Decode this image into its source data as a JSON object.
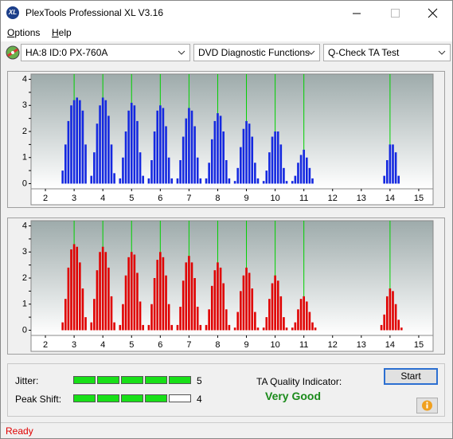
{
  "window": {
    "icon": "XL",
    "title": "PlexTools Professional XL V3.16"
  },
  "menu": [
    "Options",
    "Help"
  ],
  "toolbar": {
    "drive": "HA:8 ID:0  PX-760A",
    "function": "DVD Diagnostic Functions",
    "test": "Q-Check TA Test"
  },
  "chart_data": [
    {
      "type": "bar",
      "color": "#1428e0",
      "marker_color": "#00d000",
      "xlim": [
        1.5,
        15.5
      ],
      "ylim": [
        -0.2,
        4.2
      ],
      "xticks": [
        2,
        3,
        4,
        5,
        6,
        7,
        8,
        9,
        10,
        11,
        12,
        13,
        14,
        15
      ],
      "yticks": [
        0,
        0.5,
        1,
        1.5,
        2,
        2.5,
        3,
        3.5,
        4
      ],
      "markers": [
        3,
        4,
        5,
        6,
        7,
        8,
        9,
        10,
        11,
        14
      ],
      "x": [
        2.6,
        2.7,
        2.8,
        2.9,
        3,
        3.1,
        3.2,
        3.3,
        3.4,
        3.6,
        3.7,
        3.8,
        3.9,
        4,
        4.1,
        4.2,
        4.3,
        4.4,
        4.6,
        4.7,
        4.8,
        4.9,
        5,
        5.1,
        5.2,
        5.3,
        5.4,
        5.6,
        5.7,
        5.8,
        5.9,
        6,
        6.1,
        6.2,
        6.3,
        6.4,
        6.6,
        6.7,
        6.8,
        6.9,
        7,
        7.1,
        7.2,
        7.3,
        7.4,
        7.6,
        7.7,
        7.8,
        7.9,
        8,
        8.1,
        8.2,
        8.3,
        8.4,
        8.6,
        8.7,
        8.8,
        8.9,
        9,
        9.1,
        9.2,
        9.3,
        9.4,
        9.6,
        9.7,
        9.8,
        9.9,
        10,
        10.1,
        10.2,
        10.3,
        10.4,
        10.6,
        10.7,
        10.8,
        10.9,
        11,
        11.1,
        11.2,
        11.3,
        11.4,
        13.6,
        13.7,
        13.8,
        13.9,
        14,
        14.1,
        14.2,
        14.3,
        14.4
      ],
      "values": [
        0.5,
        1.5,
        2.4,
        3.0,
        3.2,
        3.3,
        3.2,
        2.8,
        1.5,
        0.3,
        1.2,
        2.3,
        3.0,
        3.3,
        3.2,
        2.6,
        1.5,
        0.4,
        0.2,
        1.0,
        2.0,
        2.8,
        3.1,
        3.0,
        2.4,
        1.2,
        0.3,
        0.2,
        0.9,
        2.0,
        2.8,
        3.0,
        2.9,
        2.2,
        1.0,
        0.2,
        0.2,
        0.9,
        1.8,
        2.5,
        2.9,
        2.8,
        2.2,
        1.0,
        0.2,
        0.2,
        0.8,
        1.7,
        2.4,
        2.7,
        2.6,
        2.0,
        0.9,
        0.2,
        0.1,
        0.6,
        1.4,
        2.1,
        2.4,
        2.3,
        1.8,
        0.8,
        0.2,
        0.1,
        0.5,
        1.2,
        1.8,
        2.0,
        2.0,
        1.5,
        0.6,
        0.1,
        0.1,
        0.3,
        0.8,
        1.1,
        1.3,
        1.0,
        0.6,
        0.2,
        0,
        0,
        0,
        0.3,
        0.9,
        1.5,
        1.5,
        1.2,
        0.3,
        0
      ]
    },
    {
      "type": "bar",
      "color": "#e00000",
      "marker_color": "#00d000",
      "xlim": [
        1.5,
        15.5
      ],
      "ylim": [
        -0.2,
        4.2
      ],
      "xticks": [
        2,
        3,
        4,
        5,
        6,
        7,
        8,
        9,
        10,
        11,
        12,
        13,
        14,
        15
      ],
      "yticks": [
        0,
        0.5,
        1,
        1.5,
        2,
        2.5,
        3,
        3.5,
        4
      ],
      "markers": [
        3,
        4,
        5,
        6,
        7,
        8,
        9,
        10,
        11,
        14
      ],
      "x": [
        2.6,
        2.7,
        2.8,
        2.9,
        3,
        3.1,
        3.2,
        3.3,
        3.4,
        3.6,
        3.7,
        3.8,
        3.9,
        4,
        4.1,
        4.2,
        4.3,
        4.4,
        4.6,
        4.7,
        4.8,
        4.9,
        5,
        5.1,
        5.2,
        5.3,
        5.4,
        5.6,
        5.7,
        5.8,
        5.9,
        6,
        6.1,
        6.2,
        6.3,
        6.4,
        6.6,
        6.7,
        6.8,
        6.9,
        7,
        7.1,
        7.2,
        7.3,
        7.4,
        7.6,
        7.7,
        7.8,
        7.9,
        8,
        8.1,
        8.2,
        8.3,
        8.4,
        8.6,
        8.7,
        8.8,
        8.9,
        9,
        9.1,
        9.2,
        9.3,
        9.4,
        9.6,
        9.7,
        9.8,
        9.9,
        10,
        10.1,
        10.2,
        10.3,
        10.4,
        10.6,
        10.7,
        10.8,
        10.9,
        11,
        11.1,
        11.2,
        11.3,
        11.4,
        13.6,
        13.7,
        13.8,
        13.9,
        14,
        14.1,
        14.2,
        14.3,
        14.4
      ],
      "values": [
        0.3,
        1.2,
        2.4,
        3.1,
        3.3,
        3.2,
        2.6,
        1.6,
        0.5,
        0.3,
        1.2,
        2.3,
        3.0,
        3.2,
        3.0,
        2.4,
        1.3,
        0.3,
        0.2,
        1.0,
        2.1,
        2.8,
        3.0,
        2.9,
        2.2,
        1.1,
        0.2,
        0.2,
        1.0,
        2.0,
        2.7,
        3.0,
        2.8,
        2.1,
        1.0,
        0.2,
        0.2,
        0.9,
        1.9,
        2.6,
        2.85,
        2.6,
        2.0,
        0.9,
        0.2,
        0.2,
        0.8,
        1.7,
        2.3,
        2.6,
        2.4,
        1.8,
        0.8,
        0.2,
        0.1,
        0.7,
        1.5,
        2.1,
        2.4,
        2.2,
        1.6,
        0.7,
        0.1,
        0.1,
        0.5,
        1.2,
        1.8,
        2.1,
        1.9,
        1.3,
        0.5,
        0.1,
        0.1,
        0.3,
        0.8,
        1.2,
        1.3,
        1.1,
        0.7,
        0.3,
        0.1,
        0,
        0.2,
        0.6,
        1.3,
        1.6,
        1.5,
        1.0,
        0.4,
        0.1
      ]
    }
  ],
  "quality": {
    "jitter_label": "Jitter:",
    "jitter": 5,
    "peak_shift_label": "Peak Shift:",
    "peak_shift": 4,
    "indicator_label": "TA Quality Indicator:",
    "indicator": "Very Good"
  },
  "start_button": "Start",
  "status": "Ready"
}
